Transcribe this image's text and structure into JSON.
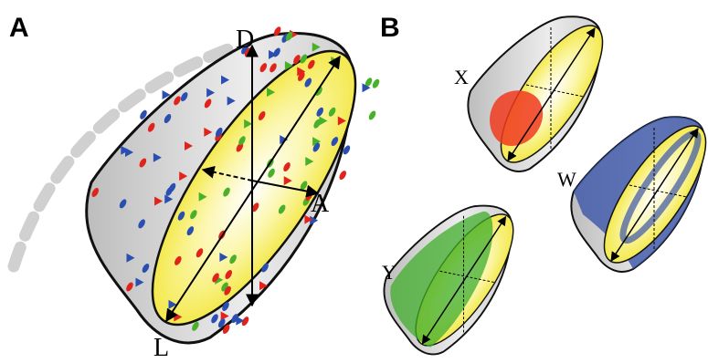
{
  "panel_a": {
    "label": "A",
    "axes": {
      "dorsal": "D",
      "anterior": "A",
      "lateral": "L"
    }
  },
  "panel_b": {
    "label": "B",
    "groups": {
      "x": "X",
      "w": "W",
      "y": "Y"
    }
  }
}
